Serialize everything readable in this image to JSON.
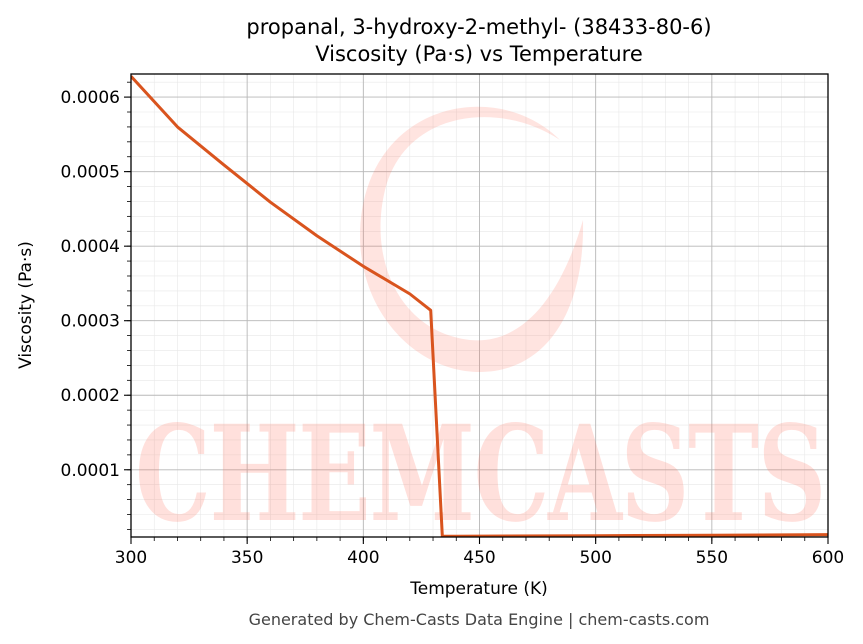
{
  "chart_data": {
    "type": "line",
    "title": "propanal, 3-hydroxy-2-methyl- (38433-80-6)",
    "subtitle": "Viscosity (Pa·s) vs Temperature",
    "xlabel": "Temperature (K)",
    "ylabel": "Viscosity (Pa·s)",
    "xlim": [
      300,
      600
    ],
    "ylim": [
      9.8e-06,
      0.000631
    ],
    "x_ticks": [
      300,
      350,
      400,
      450,
      500,
      550,
      600
    ],
    "y_ticks": [
      0.0001,
      0.0002,
      0.0003,
      0.0004,
      0.0005,
      0.0006
    ],
    "x_tick_labels": [
      "300",
      "350",
      "400",
      "450",
      "500",
      "550",
      "600"
    ],
    "y_tick_labels": [
      "0.0001",
      "0.0002",
      "0.0003",
      "0.0004",
      "0.0005",
      "0.0006"
    ],
    "grid": true,
    "series": [
      {
        "color": "#d9541e",
        "x": [
          300,
          320,
          340,
          360,
          380,
          400,
          420,
          429,
          434,
          440,
          500,
          550,
          600
        ],
        "y": [
          0.000628,
          0.00056,
          0.000509,
          0.000459,
          0.000414,
          0.000373,
          0.000336,
          0.000314,
          1.08e-05,
          1.08e-05,
          1.15e-05,
          1.22e-05,
          1.3e-05
        ]
      }
    ]
  },
  "watermark": {
    "text": "CHEMCASTS",
    "color": "#ff6a55"
  },
  "footer": {
    "text": "Generated by Chem-Casts Data Engine | chem-casts.com"
  }
}
